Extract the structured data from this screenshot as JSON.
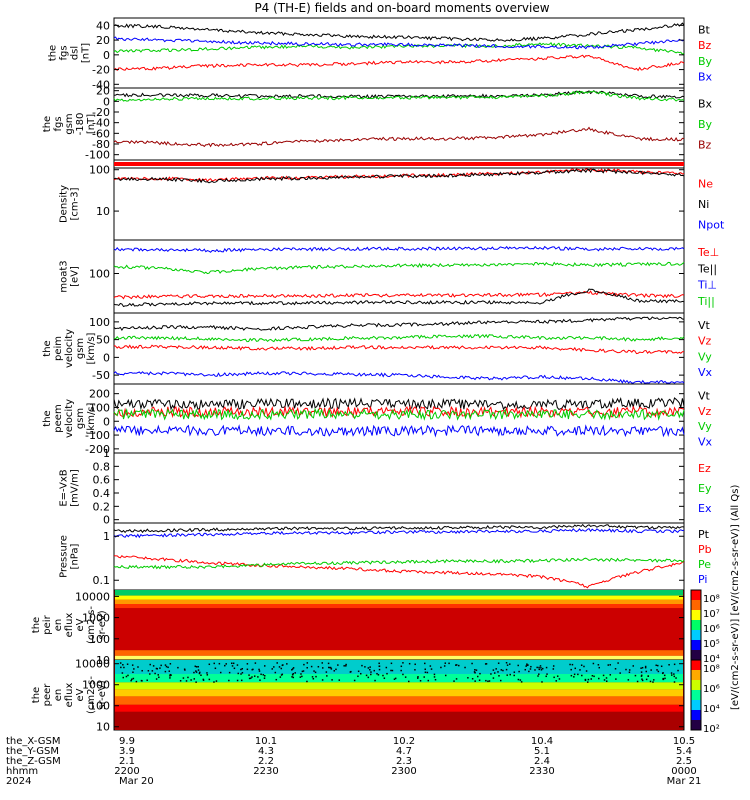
{
  "title": "P4 (TH-E) fields and on-board moments overview",
  "chart_data": [
    {
      "type": "line",
      "ylabel_lines": [
        "the",
        "fgs",
        "dsl",
        "[nT]"
      ],
      "ylim": [
        -45,
        50
      ],
      "yticks": [
        40,
        20,
        0,
        -20,
        -40
      ],
      "series": [
        {
          "name": "Bt",
          "color": "#000000",
          "values": [
            40,
            38,
            34,
            30,
            28,
            25,
            24,
            22,
            20,
            22,
            28,
            34,
            42
          ]
        },
        {
          "name": "Bz",
          "color": "#ff0000",
          "values": [
            -20,
            -18,
            -15,
            -13,
            -14,
            -12,
            -10,
            -10,
            -8,
            -5,
            -2,
            -20,
            -10
          ]
        },
        {
          "name": "By",
          "color": "#00cc00",
          "values": [
            5,
            6,
            8,
            10,
            12,
            10,
            12,
            12,
            12,
            15,
            12,
            10,
            2
          ]
        },
        {
          "name": "Bx",
          "color": "#0000ff",
          "values": [
            22,
            20,
            18,
            16,
            15,
            14,
            14,
            13,
            12,
            11,
            10,
            15,
            20
          ]
        }
      ]
    },
    {
      "type": "line",
      "ylabel_lines": [
        "the",
        "fgs",
        "gsm",
        "-180",
        "[nT]"
      ],
      "ylim": [
        -110,
        25
      ],
      "yticks": [
        20,
        0,
        -20,
        -40,
        -60,
        -80,
        -100
      ],
      "series": [
        {
          "name": "Bx",
          "color": "#000000",
          "values": [
            12,
            12,
            11,
            10,
            10,
            9,
            9,
            10,
            10,
            12,
            18,
            10,
            8
          ]
        },
        {
          "name": "By",
          "color": "#00cc00",
          "values": [
            3,
            4,
            5,
            5,
            6,
            6,
            7,
            7,
            8,
            10,
            18,
            6,
            3
          ]
        },
        {
          "name": "Bz",
          "color": "#990000",
          "values": [
            -75,
            -78,
            -82,
            -80,
            -75,
            -72,
            -70,
            -70,
            -68,
            -62,
            -52,
            -70,
            -72
          ]
        }
      ]
    },
    {
      "type": "line",
      "ylabel_lines": [
        "Density",
        "[cm-3]"
      ],
      "yscale": "log",
      "ylim": [
        2,
        110
      ],
      "yticks": [
        100,
        10
      ],
      "series": [
        {
          "name": "Ne",
          "color": "#ff0000",
          "values": [
            60,
            62,
            55,
            62,
            65,
            68,
            72,
            75,
            80,
            88,
            100,
            90,
            78
          ]
        },
        {
          "name": "Ni",
          "color": "#000000",
          "values": [
            58,
            60,
            52,
            60,
            62,
            66,
            70,
            72,
            78,
            85,
            95,
            85,
            75
          ]
        },
        {
          "name": "Npot",
          "color": "#0000ff",
          "values": []
        }
      ]
    },
    {
      "type": "line",
      "ylabel_lines": [
        "moat3",
        "[eV]"
      ],
      "yscale": "log",
      "ylim": [
        15,
        500
      ],
      "yticks": [
        100
      ],
      "series": [
        {
          "name": "Te⊥",
          "color": "#ff0000",
          "values": [
            32,
            33,
            34,
            34,
            34,
            35,
            35,
            35,
            36,
            36,
            40,
            35,
            34
          ]
        },
        {
          "name": "Te||",
          "color": "#000000",
          "values": [
            22,
            23,
            24,
            24,
            24,
            25,
            25,
            25,
            25,
            24,
            45,
            27,
            26
          ]
        },
        {
          "name": "Ti⊥",
          "color": "#0000ff",
          "values": [
            320,
            310,
            300,
            315,
            320,
            325,
            330,
            330,
            335,
            340,
            320,
            330,
            330
          ]
        },
        {
          "name": "Ti||",
          "color": "#00cc00",
          "values": [
            140,
            130,
            105,
            125,
            135,
            140,
            145,
            150,
            155,
            160,
            150,
            155,
            160
          ]
        }
      ]
    },
    {
      "type": "line",
      "ylabel_lines": [
        "the",
        "peim",
        "velocity",
        "gsm",
        "[km/s]"
      ],
      "ylim": [
        -75,
        125
      ],
      "yticks": [
        100,
        50,
        0,
        -50
      ],
      "series": [
        {
          "name": "Vt",
          "color": "#000000",
          "values": [
            80,
            85,
            85,
            80,
            85,
            90,
            92,
            95,
            100,
            100,
            105,
            110,
            110
          ]
        },
        {
          "name": "Vz",
          "color": "#ff0000",
          "values": [
            30,
            30,
            28,
            25,
            25,
            28,
            28,
            28,
            28,
            28,
            20,
            15,
            15
          ]
        },
        {
          "name": "Vy",
          "color": "#00cc00",
          "values": [
            55,
            55,
            52,
            48,
            50,
            55,
            55,
            60,
            60,
            55,
            55,
            50,
            55
          ]
        },
        {
          "name": "Vx",
          "color": "#0000ff",
          "values": [
            -45,
            -45,
            -50,
            -45,
            -45,
            -48,
            -50,
            -55,
            -60,
            -55,
            -60,
            -70,
            -70
          ]
        }
      ]
    },
    {
      "type": "line",
      "ylabel_lines": [
        "the",
        "peem",
        "velocity",
        "gsm",
        "[km/s]"
      ],
      "ylim": [
        -230,
        270
      ],
      "yticks": [
        200,
        100,
        0,
        -100,
        -200
      ],
      "series": [
        {
          "name": "Vt",
          "color": "#000000",
          "values": [
            130,
            125,
            120,
            125,
            130,
            128,
            125,
            125,
            120,
            120,
            125,
            130,
            135
          ]
        },
        {
          "name": "Vz",
          "color": "#ff0000",
          "values": [
            70,
            70,
            65,
            70,
            72,
            70,
            70,
            68,
            66,
            70,
            65,
            70,
            70
          ]
        },
        {
          "name": "Vy",
          "color": "#00cc00",
          "values": [
            50,
            50,
            48,
            50,
            52,
            50,
            50,
            48,
            50,
            50,
            50,
            50,
            50
          ]
        },
        {
          "name": "Vx",
          "color": "#0000ff",
          "values": [
            -70,
            -70,
            -65,
            -70,
            -72,
            -70,
            -70,
            -68,
            -66,
            -70,
            -65,
            -70,
            -70
          ]
        }
      ]
    },
    {
      "type": "line",
      "ylabel_lines": [
        "E=-VxB",
        "[mV/m]"
      ],
      "ylim": [
        -0.05,
        1.0
      ],
      "yticks": [
        1.0,
        0.8,
        0.6,
        0.4,
        0.2,
        0.0
      ],
      "series": [
        {
          "name": "Ez",
          "color": "#ff0000",
          "values": []
        },
        {
          "name": "Ey",
          "color": "#00cc00",
          "values": []
        },
        {
          "name": "Ex",
          "color": "#0000ff",
          "values": []
        }
      ]
    },
    {
      "type": "line",
      "ylabel_lines": [
        "Pressure",
        "[nPa]"
      ],
      "yscale": "log",
      "ylim": [
        0.06,
        2.0
      ],
      "yticks": [
        1.0,
        0.1
      ],
      "series": [
        {
          "name": "Pt",
          "color": "#000000",
          "values": [
            1.3,
            1.35,
            1.4,
            1.45,
            1.5,
            1.5,
            1.55,
            1.55,
            1.6,
            1.6,
            1.75,
            1.6,
            1.55
          ]
        },
        {
          "name": "Pb",
          "color": "#ff0000",
          "values": [
            0.35,
            0.3,
            0.25,
            0.22,
            0.2,
            0.18,
            0.16,
            0.15,
            0.14,
            0.12,
            0.07,
            0.15,
            0.25
          ]
        },
        {
          "name": "Pe",
          "color": "#00cc00",
          "values": [
            0.2,
            0.2,
            0.2,
            0.22,
            0.24,
            0.25,
            0.26,
            0.27,
            0.27,
            0.28,
            0.3,
            0.28,
            0.28
          ]
        },
        {
          "name": "Pi",
          "color": "#0000ff",
          "values": [
            1.0,
            1.05,
            1.1,
            1.15,
            1.2,
            1.2,
            1.25,
            1.25,
            1.3,
            1.3,
            1.4,
            1.3,
            1.3
          ]
        }
      ]
    },
    {
      "type": "heatmap",
      "ylabel_lines": [
        "the",
        "peir",
        "en",
        "eflux",
        "eV",
        "(cm2-s-",
        "sr-eV)"
      ],
      "yscale": "log",
      "ylim": [
        10,
        20000
      ],
      "yticks": [
        10000,
        1000,
        100,
        10
      ]
    },
    {
      "type": "heatmap",
      "ylabel_lines": [
        "the",
        "peer",
        "en",
        "eflux",
        "eV",
        "(cm2-s-",
        "sr-eV)"
      ],
      "yscale": "log",
      "ylim": [
        7,
        15000
      ],
      "yticks": [
        10000,
        1000,
        100,
        10
      ]
    }
  ],
  "colorbars": [
    {
      "ticks": [
        "10⁸",
        "10⁷",
        "10⁶",
        "10⁵",
        "10⁴"
      ]
    },
    {
      "ticks": [
        "10⁸",
        "10⁶",
        "10⁴",
        "10²"
      ]
    }
  ],
  "colorbar_label": "[eV/(cm2-s-sr-eV)] [eV/(cm2-s-sr-eV)] (All Qs)",
  "x_axis": {
    "rows": [
      {
        "name": "the_X-GSM",
        "values": [
          "9.9",
          "10.1",
          "10.2",
          "10.4",
          "10.5"
        ]
      },
      {
        "name": "the_Y-GSM",
        "values": [
          "3.9",
          "4.3",
          "4.7",
          "5.1",
          "5.4"
        ]
      },
      {
        "name": "the_Z-GSM",
        "values": [
          "2.1",
          "2.2",
          "2.3",
          "2.4",
          "2.5"
        ]
      },
      {
        "name": "hhmm",
        "values": [
          "2200",
          "2230",
          "2300",
          "2330",
          "0000"
        ]
      }
    ],
    "year": "2024",
    "dates": [
      "Mar 20",
      "Mar 21"
    ]
  }
}
